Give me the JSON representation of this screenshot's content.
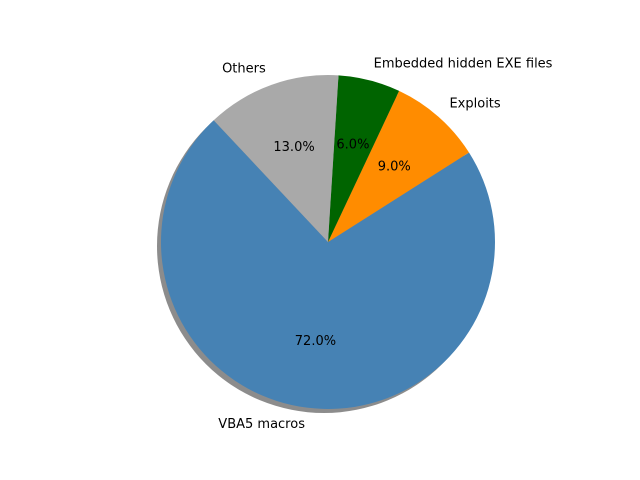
{
  "chart_data": {
    "type": "pie",
    "title": "",
    "slices": [
      {
        "label": "VBA5 macros",
        "value": 72.0,
        "pct_label": "72.0%",
        "color": "#4682b4"
      },
      {
        "label": "Exploits",
        "value": 9.0,
        "pct_label": "9.0%",
        "color": "#ff8c00"
      },
      {
        "label": "Embedded hidden EXE files",
        "value": 6.0,
        "pct_label": "6.0%",
        "color": "#006400"
      },
      {
        "label": "Others",
        "value": 13.0,
        "pct_label": "13.0%",
        "color": "#a9a9a9"
      }
    ],
    "shadow": true,
    "legend": "none"
  }
}
